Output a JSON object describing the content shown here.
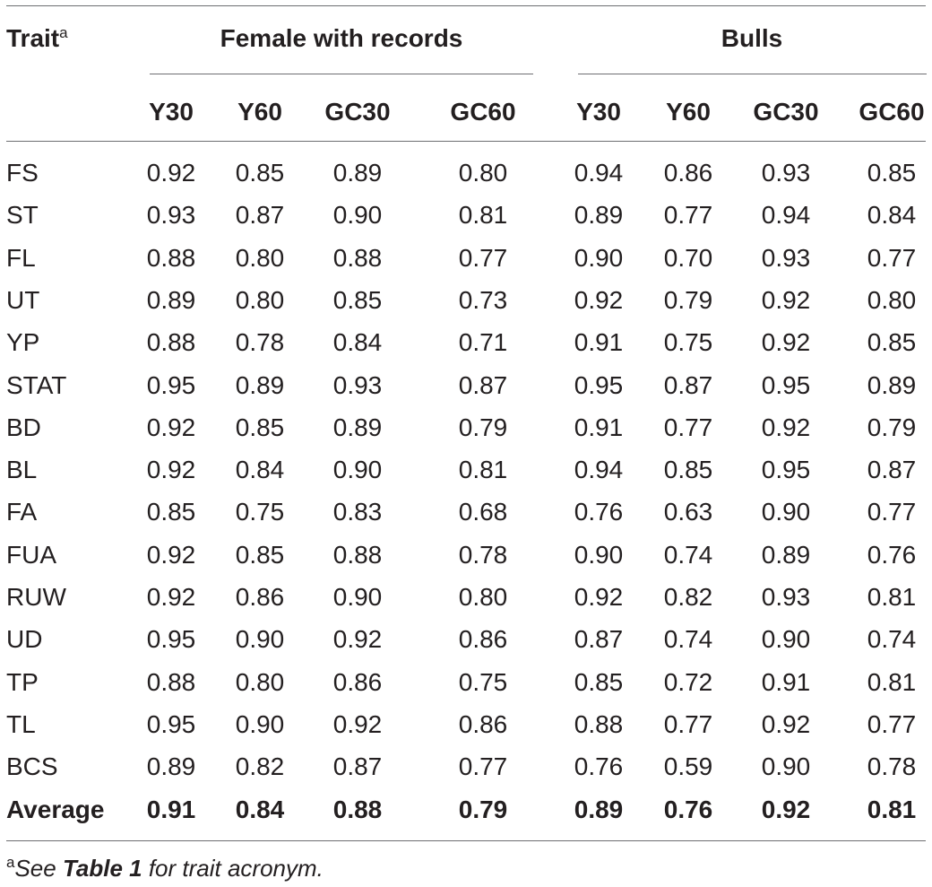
{
  "table": {
    "header": {
      "trait_label": "Trait",
      "trait_sup": "a",
      "group_female": "Female with records",
      "group_bulls": "Bulls",
      "columns": [
        "Y30",
        "Y60",
        "GC30",
        "GC60",
        "Y30",
        "Y60",
        "GC30",
        "GC60"
      ]
    },
    "rows": [
      {
        "trait": "FS",
        "values": [
          "0.92",
          "0.85",
          "0.89",
          "0.80",
          "0.94",
          "0.86",
          "0.93",
          "0.85"
        ]
      },
      {
        "trait": "ST",
        "values": [
          "0.93",
          "0.87",
          "0.90",
          "0.81",
          "0.89",
          "0.77",
          "0.94",
          "0.84"
        ]
      },
      {
        "trait": "FL",
        "values": [
          "0.88",
          "0.80",
          "0.88",
          "0.77",
          "0.90",
          "0.70",
          "0.93",
          "0.77"
        ]
      },
      {
        "trait": "UT",
        "values": [
          "0.89",
          "0.80",
          "0.85",
          "0.73",
          "0.92",
          "0.79",
          "0.92",
          "0.80"
        ]
      },
      {
        "trait": "YP",
        "values": [
          "0.88",
          "0.78",
          "0.84",
          "0.71",
          "0.91",
          "0.75",
          "0.92",
          "0.85"
        ]
      },
      {
        "trait": "STAT",
        "values": [
          "0.95",
          "0.89",
          "0.93",
          "0.87",
          "0.95",
          "0.87",
          "0.95",
          "0.89"
        ]
      },
      {
        "trait": "BD",
        "values": [
          "0.92",
          "0.85",
          "0.89",
          "0.79",
          "0.91",
          "0.77",
          "0.92",
          "0.79"
        ]
      },
      {
        "trait": "BL",
        "values": [
          "0.92",
          "0.84",
          "0.90",
          "0.81",
          "0.94",
          "0.85",
          "0.95",
          "0.87"
        ]
      },
      {
        "trait": "FA",
        "values": [
          "0.85",
          "0.75",
          "0.83",
          "0.68",
          "0.76",
          "0.63",
          "0.90",
          "0.77"
        ]
      },
      {
        "trait": "FUA",
        "values": [
          "0.92",
          "0.85",
          "0.88",
          "0.78",
          "0.90",
          "0.74",
          "0.89",
          "0.76"
        ]
      },
      {
        "trait": "RUW",
        "values": [
          "0.92",
          "0.86",
          "0.90",
          "0.80",
          "0.92",
          "0.82",
          "0.93",
          "0.81"
        ]
      },
      {
        "trait": "UD",
        "values": [
          "0.95",
          "0.90",
          "0.92",
          "0.86",
          "0.87",
          "0.74",
          "0.90",
          "0.74"
        ]
      },
      {
        "trait": "TP",
        "values": [
          "0.88",
          "0.80",
          "0.86",
          "0.75",
          "0.85",
          "0.72",
          "0.91",
          "0.81"
        ]
      },
      {
        "trait": "TL",
        "values": [
          "0.95",
          "0.90",
          "0.92",
          "0.86",
          "0.88",
          "0.77",
          "0.92",
          "0.77"
        ]
      },
      {
        "trait": "BCS",
        "values": [
          "0.89",
          "0.82",
          "0.87",
          "0.77",
          "0.76",
          "0.59",
          "0.90",
          "0.78"
        ]
      }
    ],
    "average": {
      "trait": "Average",
      "values": [
        "0.91",
        "0.84",
        "0.88",
        "0.79",
        "0.89",
        "0.76",
        "0.92",
        "0.81"
      ]
    }
  },
  "footnote": {
    "sup": "a",
    "prefix": "See ",
    "ref": "Table 1",
    "suffix": " for trait acronym."
  }
}
